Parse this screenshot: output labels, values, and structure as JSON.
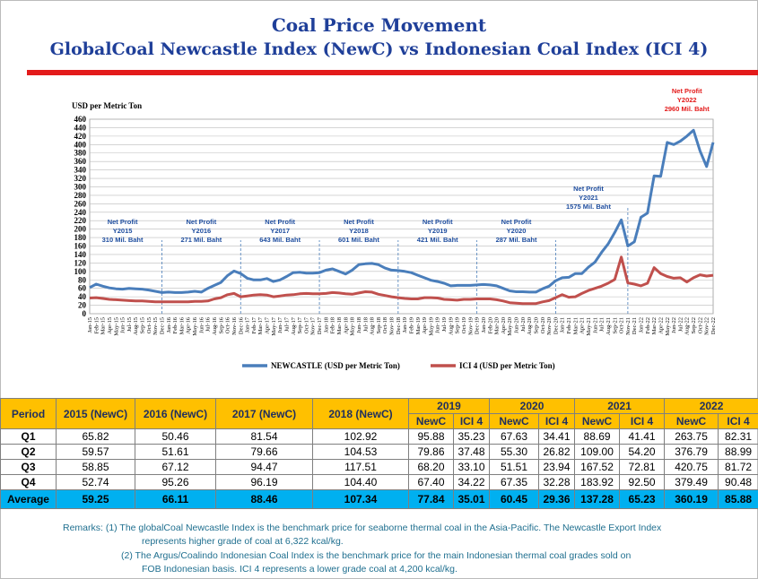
{
  "title": [
    "Coal Price Movement",
    "GlobalCoal Newcastle Index (NewC) vs Indonesian Coal Index (ICI 4)"
  ],
  "chart_data": {
    "type": "line",
    "y_label": "USD per Metric Ton",
    "categories": [
      "Jan-15",
      "Feb-15",
      "Mar-15",
      "Apr-15",
      "May-15",
      "Jun-15",
      "Jul-15",
      "Aug-15",
      "Sep-15",
      "Oct-15",
      "Nov-15",
      "Dec-15",
      "Jan-16",
      "Feb-16",
      "Mar-16",
      "Apr-16",
      "May-16",
      "Jun-16",
      "Jul-16",
      "Aug-16",
      "Sep-16",
      "Oct-16",
      "Nov-16",
      "Dec-16",
      "Jan-17",
      "Feb-17",
      "Mar-17",
      "Apr-17",
      "May-17",
      "Jun-17",
      "Jul-17",
      "Aug-17",
      "Sep-17",
      "Oct-17",
      "Nov-17",
      "Dec-17",
      "Jan-18",
      "Feb-18",
      "Mar-18",
      "Apr-18",
      "May-18",
      "Jun-18",
      "Jul-18",
      "Aug-18",
      "Sep-18",
      "Oct-18",
      "Nov-18",
      "Dec-18",
      "Jan-19",
      "Feb-19",
      "Mar-19",
      "Apr-19",
      "May-19",
      "Jun-19",
      "Jul-19",
      "Aug-19",
      "Sep-19",
      "Oct-19",
      "Nov-19",
      "Dec-19",
      "Jan-20",
      "Feb-20",
      "Mar-20",
      "Apr-20",
      "May-20",
      "Jun-20",
      "Jul-20",
      "Aug-20",
      "Sep-20",
      "Oct-20",
      "Nov-20",
      "Dec-20",
      "Jan-21",
      "Feb-21",
      "Mar-21",
      "Apr-21",
      "May-21",
      "Jun-21",
      "Jul-21",
      "Aug-21",
      "Sep-21",
      "Oct-21",
      "Nov-21",
      "Dec-21",
      "Jan-22",
      "Feb-22",
      "Mar-22",
      "Apr-22",
      "May-22",
      "Jun-22",
      "Jul-22",
      "Aug-22",
      "Sep-22",
      "Oct-22",
      "Nov-22",
      "Dec-22"
    ],
    "series": [
      {
        "name": "NEWCASTLE (USD per Metric Ton)",
        "color": "#4a7ebb",
        "values": [
          62,
          70,
          65,
          61,
          59,
          58,
          60,
          59,
          58,
          56,
          53,
          50,
          51,
          50,
          50,
          51,
          53,
          51,
          60,
          67,
          74,
          90,
          101,
          95,
          84,
          80,
          80,
          83,
          76,
          80,
          88,
          97,
          98,
          96,
          96,
          97,
          103,
          106,
          100,
          94,
          103,
          116,
          118,
          119,
          116,
          108,
          103,
          102,
          100,
          97,
          91,
          85,
          79,
          76,
          72,
          66,
          67,
          67,
          67,
          68,
          69,
          68,
          66,
          60,
          54,
          52,
          52,
          51,
          51,
          59,
          65,
          78,
          85,
          86,
          95,
          95,
          110,
          122,
          145,
          165,
          192,
          222,
          160,
          170,
          228,
          238,
          326,
          325,
          405,
          400,
          408,
          420,
          434,
          385,
          348,
          405
        ]
      },
      {
        "name": "ICI 4 (USD per Metric Ton)",
        "color": "#c0504d",
        "values": [
          37,
          38,
          36,
          34,
          33,
          32,
          31,
          30,
          30,
          29,
          28,
          28,
          28,
          28,
          28,
          28,
          29,
          29,
          30,
          35,
          38,
          45,
          48,
          40,
          42,
          44,
          45,
          44,
          40,
          42,
          44,
          45,
          47,
          48,
          47,
          47,
          48,
          50,
          49,
          47,
          46,
          49,
          52,
          51,
          46,
          43,
          40,
          38,
          36,
          35,
          35,
          38,
          38,
          37,
          34,
          33,
          32,
          34,
          34,
          35,
          35,
          35,
          33,
          30,
          26,
          25,
          24,
          24,
          24,
          28,
          31,
          38,
          45,
          39,
          40,
          48,
          55,
          60,
          65,
          72,
          81,
          134,
          73,
          70,
          66,
          72,
          109,
          95,
          88,
          84,
          85,
          75,
          85,
          92,
          89,
          91
        ]
      }
    ],
    "ylim": [
      0,
      460
    ],
    "yticks": [
      0,
      20,
      40,
      60,
      80,
      100,
      120,
      140,
      160,
      180,
      200,
      220,
      240,
      260,
      280,
      300,
      320,
      340,
      360,
      380,
      400,
      420,
      440,
      460
    ],
    "grid": true,
    "legend": "bottom",
    "annotations": [
      {
        "lines": [
          "Net Profit",
          "Y2015",
          "310 Mil. Baht"
        ],
        "color": "#1f4e9f"
      },
      {
        "lines": [
          "Net Profit",
          "Y2016",
          "271 Mil. Baht"
        ],
        "color": "#1f4e9f"
      },
      {
        "lines": [
          "Net Profit",
          "Y2017",
          "643 Mil. Baht"
        ],
        "color": "#1f4e9f"
      },
      {
        "lines": [
          "Net Profit",
          "Y2018",
          "601 Mil. Baht"
        ],
        "color": "#1f4e9f"
      },
      {
        "lines": [
          "Net Profit",
          "Y2019",
          "421 Mil. Baht"
        ],
        "color": "#1f4e9f"
      },
      {
        "lines": [
          "Net Profit",
          "Y2020",
          "287 Mil. Baht"
        ],
        "color": "#1f4e9f"
      },
      {
        "lines": [
          "Net Profit",
          "Y2021",
          "1575 Mil. Baht"
        ],
        "color": "#1f4e9f"
      },
      {
        "lines": [
          "Net Profit",
          "Y2022",
          "2960 Mil. Baht"
        ],
        "color": "#e31b1b"
      }
    ]
  },
  "table": {
    "header_top": [
      "Period",
      "2015 (NewC)",
      "2016 (NewC)",
      "2017 (NewC)",
      "2018 (NewC)",
      "2019",
      "2020",
      "2021",
      "2022"
    ],
    "header_sub": [
      "NewC",
      "ICI 4",
      "NewC",
      "ICI 4",
      "NewC",
      "ICI 4",
      "NewC",
      "ICI 4"
    ],
    "rows": [
      [
        "Q1",
        "65.82",
        "50.46",
        "81.54",
        "102.92",
        "95.88",
        "35.23",
        "67.63",
        "34.41",
        "88.69",
        "41.41",
        "263.75",
        "82.31"
      ],
      [
        "Q2",
        "59.57",
        "51.61",
        "79.66",
        "104.53",
        "79.86",
        "37.48",
        "55.30",
        "26.82",
        "109.00",
        "54.20",
        "376.79",
        "88.99"
      ],
      [
        "Q3",
        "58.85",
        "67.12",
        "94.47",
        "117.51",
        "68.20",
        "33.10",
        "51.51",
        "23.94",
        "167.52",
        "72.81",
        "420.75",
        "81.72"
      ],
      [
        "Q4",
        "52.74",
        "95.26",
        "96.19",
        "104.40",
        "67.40",
        "34.22",
        "67.35",
        "32.28",
        "183.92",
        "92.50",
        "379.49",
        "90.48"
      ],
      [
        "Average",
        "59.25",
        "66.11",
        "88.46",
        "107.34",
        "77.84",
        "35.01",
        "60.45",
        "29.36",
        "137.28",
        "65.23",
        "360.19",
        "85.88"
      ]
    ]
  },
  "remarks": [
    "Remarks:  (1) The globalCoal Newcastle Index  is the benchmark price for seaborne thermal coal in the Asia-Pacific. The Newcastle Export Index",
    "represents higher grade of coal at 6,322 kcal/kg.",
    "(2) The Argus/Coalindo Indonesian Coal Index is the benchmark price for the main Indonesian thermal coal       grades sold on",
    "FOB Indonesian basis.  ICI 4 represents a lower grade coal at 4,200 kcal/kg."
  ]
}
